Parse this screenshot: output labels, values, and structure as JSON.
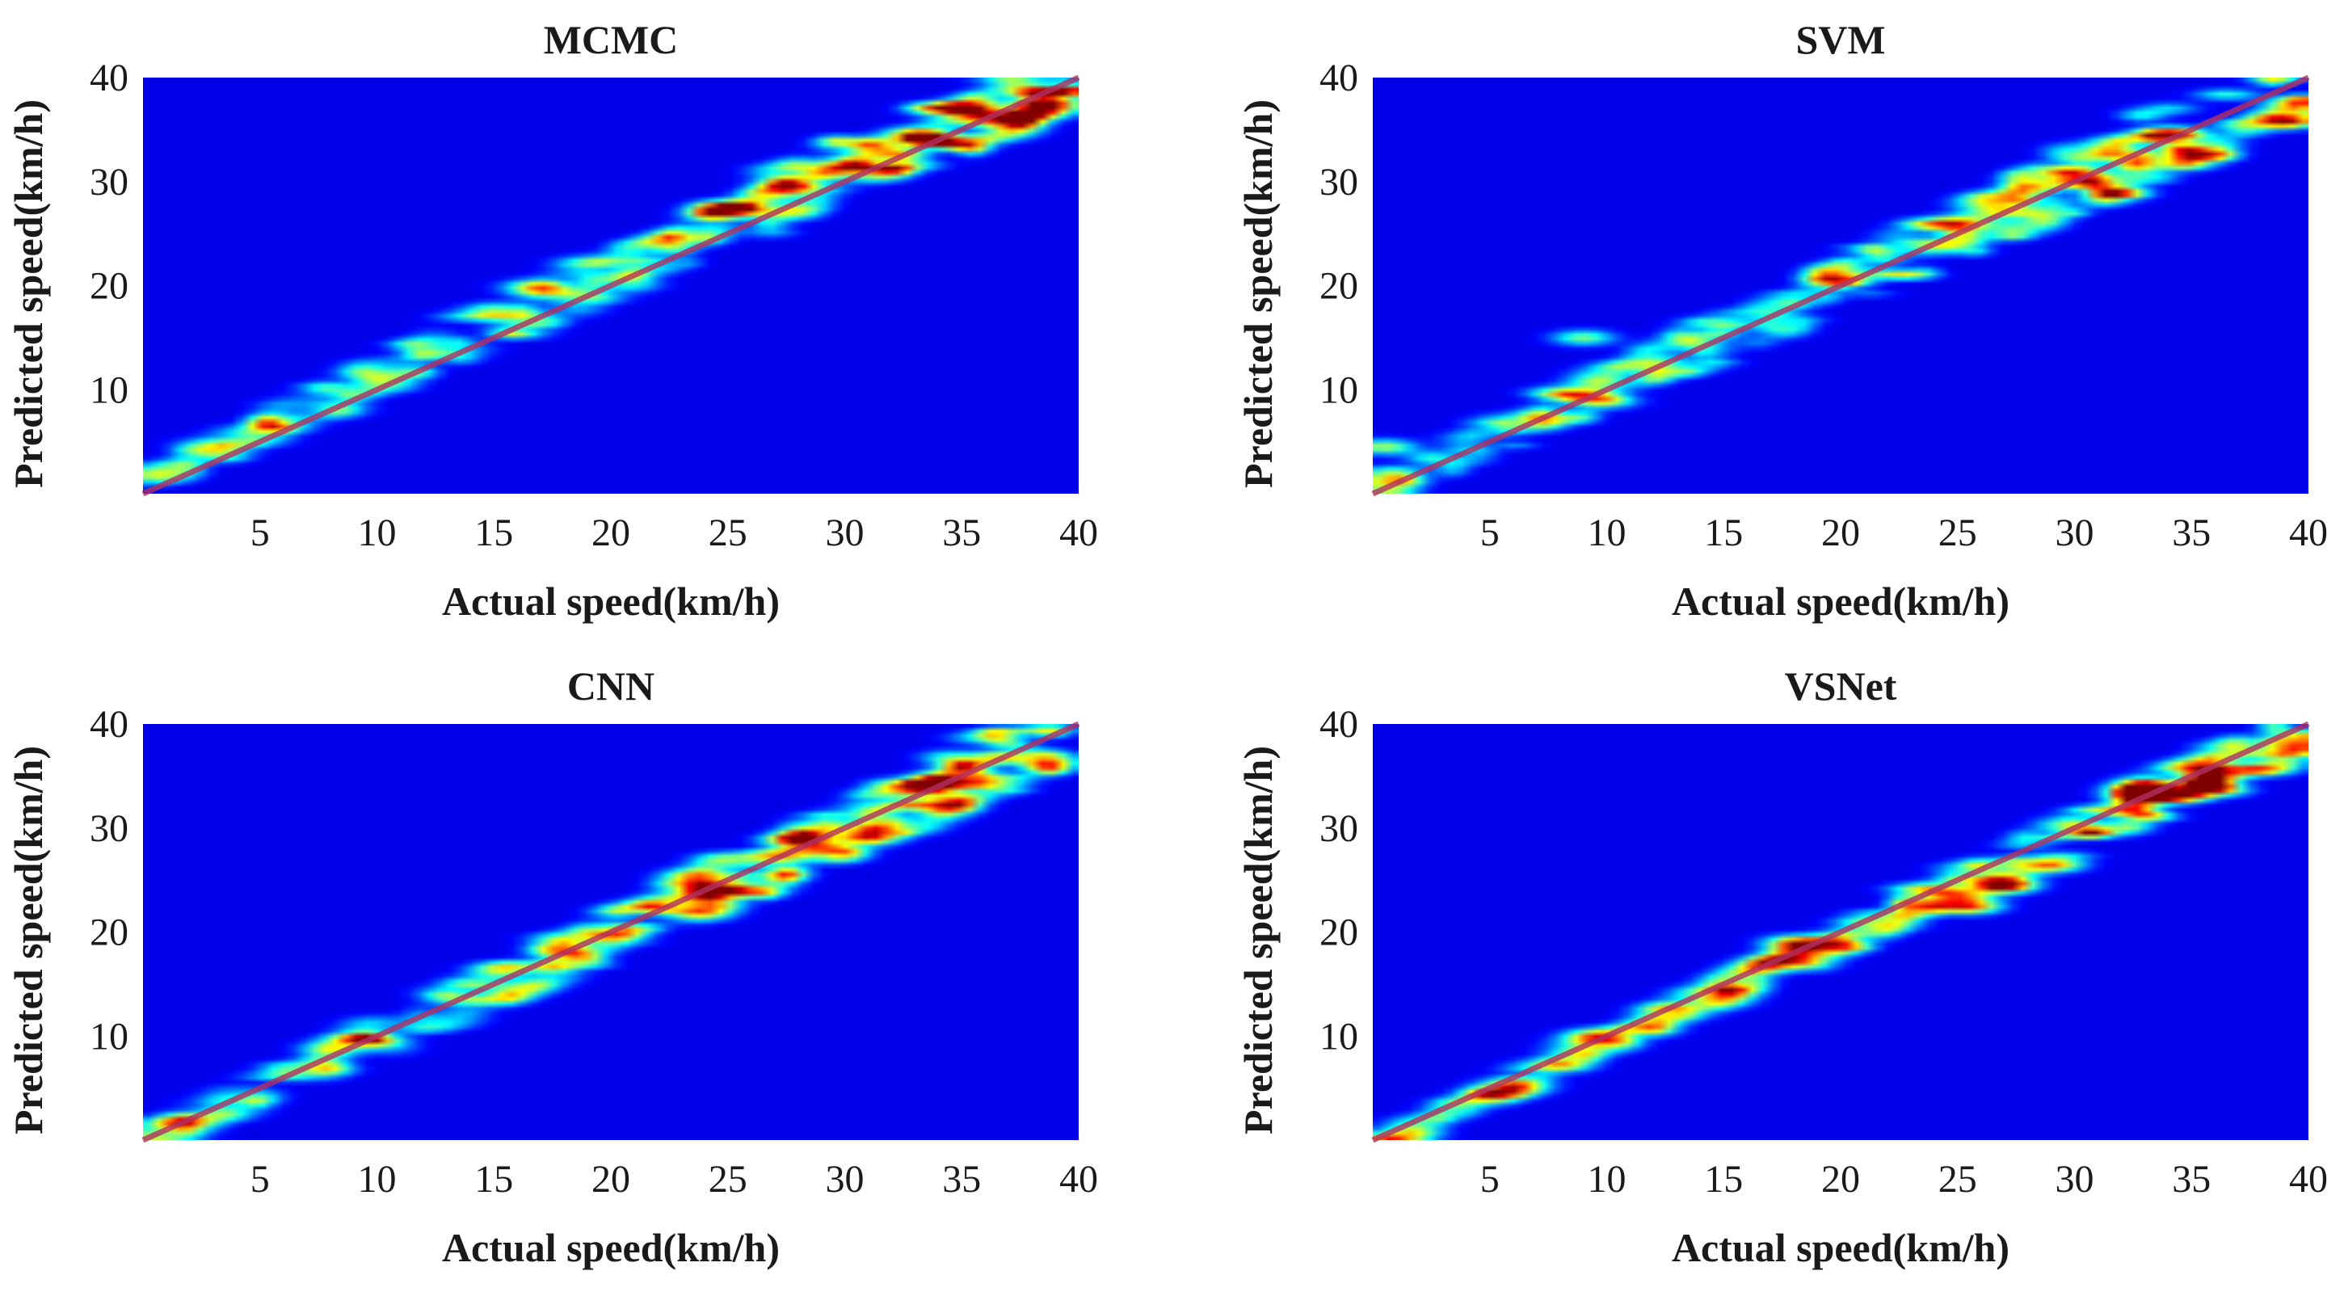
{
  "chart_data": [
    {
      "type": "heatmap",
      "title": "MCMC",
      "xlabel": "Actual speed(km/h)",
      "ylabel": "Predicted speed(km/h)",
      "xlim": [
        0,
        40
      ],
      "ylim": [
        0,
        40
      ],
      "xticks": [
        5,
        10,
        15,
        20,
        25,
        30,
        35,
        40
      ],
      "yticks": [
        10,
        20,
        30,
        40
      ],
      "reference_line": {
        "from": [
          0,
          0
        ],
        "to": [
          40,
          40
        ],
        "color": "#b03060"
      },
      "colormap": "jet",
      "background": "#00008f",
      "spread": 2.6,
      "offset": 1.2,
      "hotspots": [
        {
          "x": 27.5,
          "y": 29.5,
          "v": 0.7
        },
        {
          "x": 33,
          "y": 34.5,
          "v": 0.75
        },
        {
          "x": 35,
          "y": 37,
          "v": 0.8
        },
        {
          "x": 30,
          "y": 31.5,
          "v": 0.6
        },
        {
          "x": 25,
          "y": 27,
          "v": 0.55
        }
      ]
    },
    {
      "type": "heatmap",
      "title": "SVM",
      "xlabel": "Actual speed(km/h)",
      "ylabel": "Predicted speed(km/h)",
      "xlim": [
        0,
        40
      ],
      "ylim": [
        0,
        40
      ],
      "xticks": [
        5,
        10,
        15,
        20,
        25,
        30,
        35,
        40
      ],
      "yticks": [
        10,
        20,
        30,
        40
      ],
      "reference_line": {
        "from": [
          0,
          0
        ],
        "to": [
          40,
          40
        ],
        "color": "#b03060"
      },
      "colormap": "jet",
      "background": "#00008f",
      "spread": 2.8,
      "offset": 0.3,
      "hotspots": [
        {
          "x": 34,
          "y": 34.5,
          "v": 0.85
        },
        {
          "x": 27,
          "y": 28.5,
          "v": 0.6
        },
        {
          "x": 25,
          "y": 26,
          "v": 0.55
        },
        {
          "x": 9,
          "y": 15,
          "v": 0.45
        },
        {
          "x": 0.5,
          "y": 4.5,
          "v": 0.5
        }
      ]
    },
    {
      "type": "heatmap",
      "title": "CNN",
      "xlabel": "Actual speed(km/h)",
      "ylabel": "Predicted speed(km/h)",
      "xlim": [
        0,
        40
      ],
      "ylim": [
        0,
        40
      ],
      "xticks": [
        5,
        10,
        15,
        20,
        25,
        30,
        35,
        40
      ],
      "yticks": [
        10,
        20,
        30,
        40
      ],
      "reference_line": {
        "from": [
          0,
          0
        ],
        "to": [
          40,
          40
        ],
        "color": "#b03060"
      },
      "colormap": "jet",
      "background": "#00008f",
      "spread": 2.4,
      "offset": -0.2,
      "hotspots": [
        {
          "x": 33.5,
          "y": 34,
          "v": 0.95
        },
        {
          "x": 25,
          "y": 24,
          "v": 0.65
        },
        {
          "x": 28,
          "y": 29,
          "v": 0.6
        },
        {
          "x": 18,
          "y": 18,
          "v": 0.55
        },
        {
          "x": 31,
          "y": 29,
          "v": 0.55
        }
      ]
    },
    {
      "type": "heatmap",
      "title": "VSNet",
      "xlabel": "Actual speed(km/h)",
      "ylabel": "Predicted speed(km/h)",
      "xlim": [
        0,
        40
      ],
      "ylim": [
        0,
        40
      ],
      "xticks": [
        5,
        10,
        15,
        20,
        25,
        30,
        35,
        40
      ],
      "yticks": [
        10,
        20,
        30,
        40
      ],
      "reference_line": {
        "from": [
          0,
          0
        ],
        "to": [
          40,
          40
        ],
        "color": "#b03060"
      },
      "colormap": "jet",
      "background": "#00008f",
      "spread": 1.7,
      "offset": -0.5,
      "hotspots": [
        {
          "x": 33,
          "y": 33,
          "v": 1.0
        },
        {
          "x": 25.5,
          "y": 22.5,
          "v": 0.8
        },
        {
          "x": 27,
          "y": 24.5,
          "v": 0.7
        },
        {
          "x": 29,
          "y": 26.5,
          "v": 0.75
        },
        {
          "x": 18,
          "y": 19,
          "v": 0.55
        },
        {
          "x": 9.5,
          "y": 10,
          "v": 0.5
        }
      ]
    }
  ]
}
